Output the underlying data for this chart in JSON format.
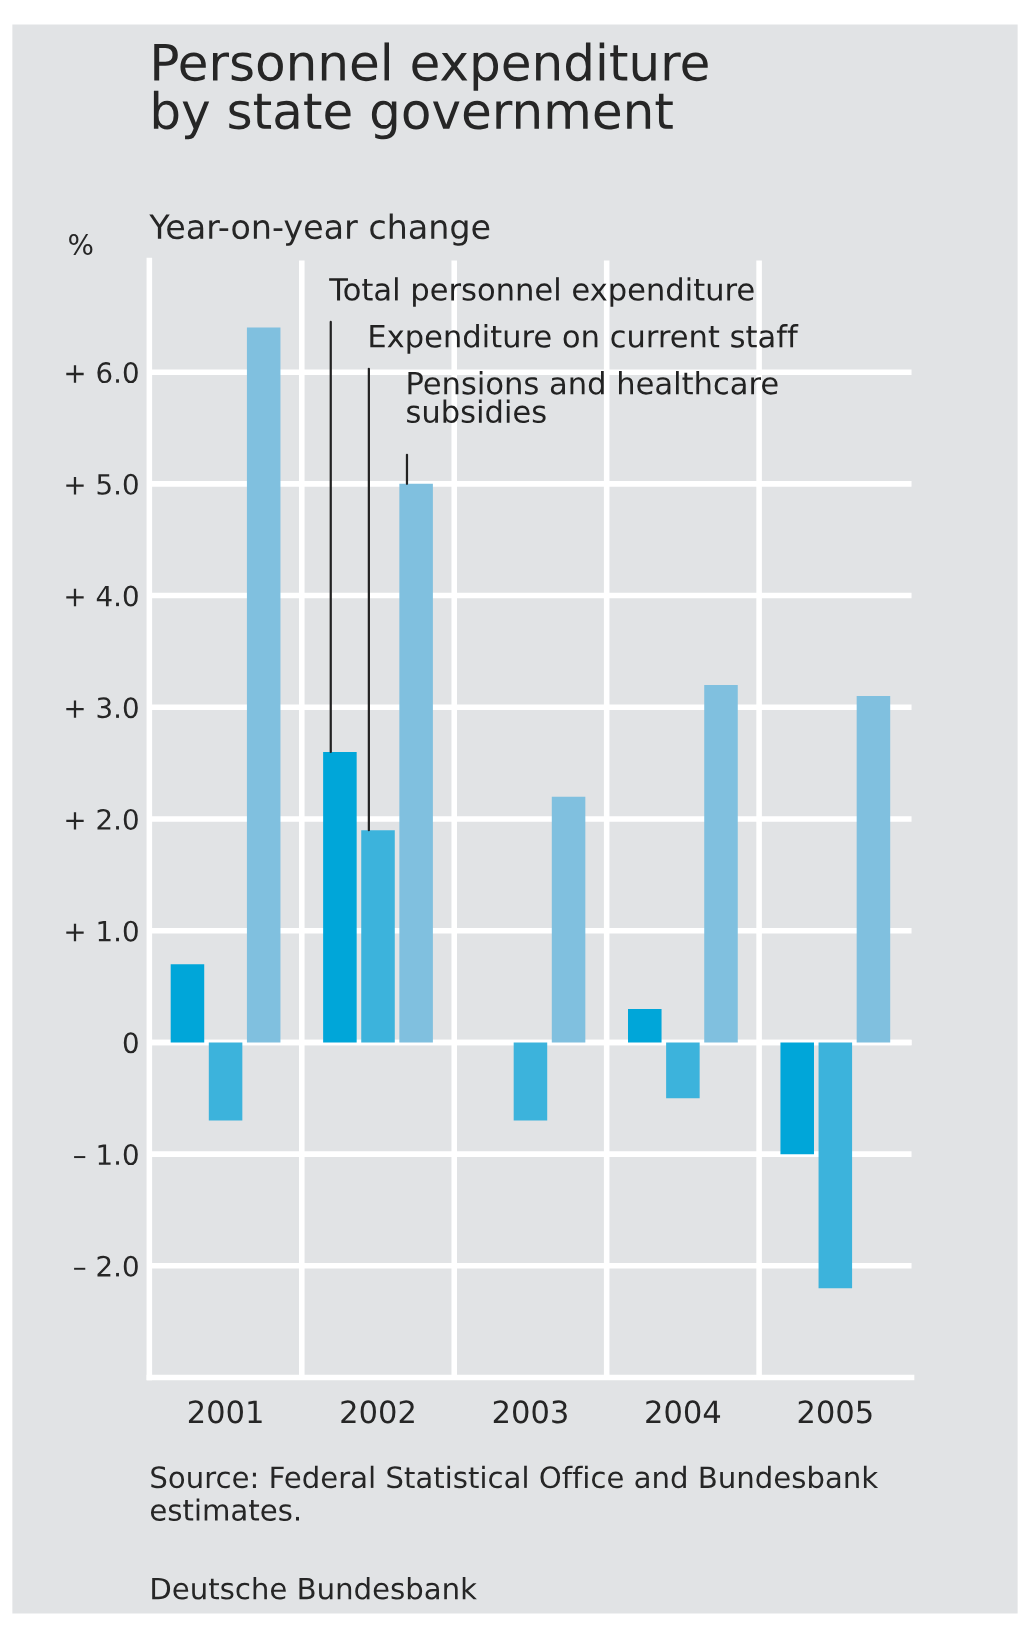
{
  "chart_data": {
    "type": "bar",
    "title": "Personnel expenditure\nby state government",
    "subtitle": "Year-on-year change",
    "ylabel": "%",
    "categories": [
      "2001",
      "2002",
      "2003",
      "2004",
      "2005"
    ],
    "series": [
      {
        "name": "Total personnel expenditure",
        "color": "#00a6d9",
        "values": [
          0.7,
          2.6,
          0.0,
          0.3,
          -1.0
        ]
      },
      {
        "name": "Expenditure on current staff",
        "color": "#3cb3dc",
        "values": [
          -0.7,
          1.9,
          -0.7,
          -0.5,
          -2.2
        ]
      },
      {
        "name": "Pensions and healthcare\nsubsidies",
        "color": "#80c0df",
        "values": [
          6.4,
          5.0,
          2.2,
          3.2,
          3.1
        ]
      }
    ],
    "ylim": [
      -3,
      7
    ],
    "yticks": [
      {
        "value": -2,
        "label": "– 2.0"
      },
      {
        "value": -1,
        "label": "– 1.0"
      },
      0,
      {
        "value": 1,
        "label": "+ 1.0"
      },
      {
        "value": 2,
        "label": "+ 2.0"
      },
      {
        "value": 3,
        "label": "+ 3.0"
      },
      {
        "value": 4,
        "label": "+ 4.0"
      },
      {
        "value": 5,
        "label": "+ 5.0"
      },
      {
        "value": 6,
        "label": "+ 6.0"
      }
    ],
    "grid": true,
    "annotations": [
      "Source: Federal Statistical Office and Bundesbank estimates.",
      "Deutsche Bundesbank"
    ]
  }
}
